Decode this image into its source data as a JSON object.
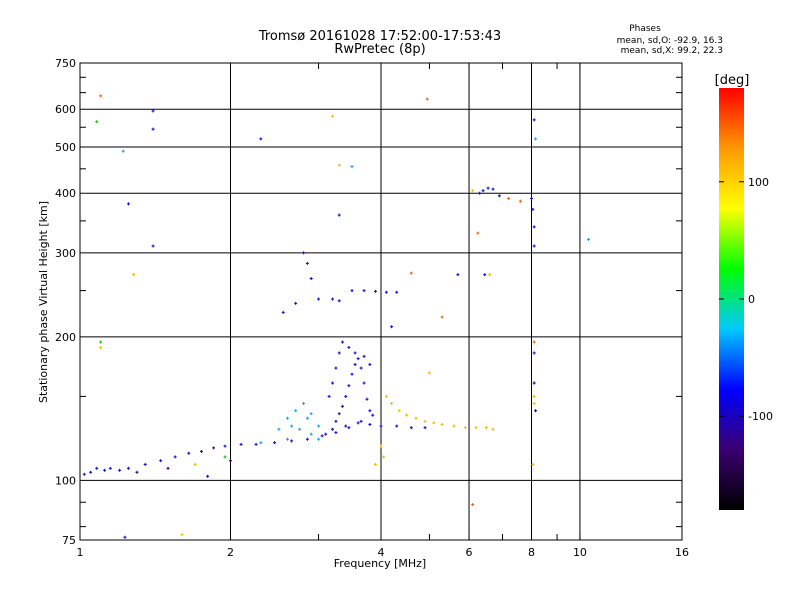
{
  "chart_data": {
    "type": "scatter",
    "title": "Tromsø 20161028 17:52:00-17:53:43",
    "subtitle": "RwPretec (8p)",
    "xlabel": "Frequency [MHz]",
    "ylabel": "Stationary phase Virtual Height [km]",
    "xscale": "log",
    "yscale": "log",
    "xlim": [
      1,
      16
    ],
    "ylim": [
      75,
      750
    ],
    "xticks": [
      1,
      2,
      4,
      6,
      8,
      10,
      16
    ],
    "xtick_labels": [
      "1",
      "2",
      "4",
      "6",
      "8",
      "10",
      "16"
    ],
    "yticks": [
      75,
      100,
      200,
      300,
      400,
      500,
      600,
      750
    ],
    "ytick_labels": [
      "75",
      "100",
      "200",
      "300",
      "400",
      "500",
      "600",
      "750"
    ],
    "grid": true,
    "phase_box": {
      "title": "Phases",
      "line_o": "mean, sd,O: -92.9, 16.3",
      "line_x": "mean, sd,X:  99.2, 22.3"
    },
    "colorbar": {
      "label": "[deg]",
      "range": [
        -180,
        180
      ],
      "ticks": [
        100,
        0,
        -100
      ],
      "tick_labels": [
        "100",
        "0",
        "-100"
      ],
      "colors": [
        "#000000",
        "#3a0070",
        "#0000ff",
        "#00c8ff",
        "#00ff00",
        "#ffff00",
        "#ff9900",
        "#ff0000"
      ]
    },
    "series": [
      {
        "color": "#1414dc",
        "points": [
          [
            1.02,
            103
          ],
          [
            1.05,
            104
          ],
          [
            1.08,
            106
          ],
          [
            1.12,
            105
          ],
          [
            1.15,
            106
          ],
          [
            1.2,
            105
          ],
          [
            1.25,
            106
          ],
          [
            1.35,
            108
          ],
          [
            1.45,
            110
          ],
          [
            1.55,
            112
          ],
          [
            1.65,
            114
          ],
          [
            1.75,
            115
          ],
          [
            1.85,
            117
          ],
          [
            1.95,
            118
          ],
          [
            2.1,
            119
          ],
          [
            2.25,
            119
          ],
          [
            2.45,
            120
          ],
          [
            2.65,
            121
          ],
          [
            2.85,
            122
          ],
          [
            3.05,
            124
          ],
          [
            3.25,
            126
          ],
          [
            3.45,
            129
          ],
          [
            3.65,
            133
          ],
          [
            3.85,
            137
          ],
          [
            3.1,
            125
          ],
          [
            3.2,
            128
          ],
          [
            3.25,
            133
          ],
          [
            3.3,
            138
          ],
          [
            3.35,
            143
          ],
          [
            3.4,
            150
          ],
          [
            3.45,
            158
          ],
          [
            3.5,
            167
          ],
          [
            3.55,
            175
          ],
          [
            3.6,
            180
          ],
          [
            3.65,
            172
          ],
          [
            3.7,
            160
          ],
          [
            3.75,
            148
          ],
          [
            3.8,
            140
          ],
          [
            3.15,
            150
          ],
          [
            3.2,
            160
          ],
          [
            3.25,
            172
          ],
          [
            3.3,
            185
          ],
          [
            3.35,
            195
          ],
          [
            3.45,
            190
          ],
          [
            3.55,
            185
          ],
          [
            3.7,
            182
          ],
          [
            3.8,
            175
          ],
          [
            3.4,
            130
          ],
          [
            3.6,
            132
          ],
          [
            3.8,
            131
          ],
          [
            4.0,
            130
          ],
          [
            4.3,
            130
          ],
          [
            4.6,
            129
          ],
          [
            4.9,
            129
          ],
          [
            3.5,
            250
          ],
          [
            3.7,
            250
          ],
          [
            3.9,
            249
          ],
          [
            4.1,
            248
          ],
          [
            4.3,
            248
          ],
          [
            2.8,
            300
          ],
          [
            2.85,
            285
          ],
          [
            2.9,
            265
          ],
          [
            2.7,
            235
          ],
          [
            3.0,
            240
          ],
          [
            3.2,
            240
          ],
          [
            3.3,
            238
          ],
          [
            2.55,
            225
          ],
          [
            6.4,
            405
          ],
          [
            6.55,
            410
          ],
          [
            6.7,
            408
          ],
          [
            6.9,
            395
          ],
          [
            6.3,
            400
          ],
          [
            8.0,
            390
          ],
          [
            8.05,
            370
          ],
          [
            8.1,
            340
          ],
          [
            8.1,
            310
          ],
          [
            8.1,
            185
          ],
          [
            8.1,
            570
          ],
          [
            1.25,
            380
          ],
          [
            1.4,
            595
          ],
          [
            1.4,
            545
          ],
          [
            1.4,
            310
          ],
          [
            1.23,
            76
          ],
          [
            1.8,
            102
          ],
          [
            2.3,
            520
          ],
          [
            3.3,
            360
          ],
          [
            4.2,
            210
          ],
          [
            6.45,
            270
          ],
          [
            5.7,
            270
          ]
        ]
      },
      {
        "color": "#28a0f0",
        "points": [
          [
            2.6,
            135
          ],
          [
            2.7,
            140
          ],
          [
            2.8,
            145
          ],
          [
            2.9,
            138
          ],
          [
            3.0,
            130
          ],
          [
            2.75,
            128
          ],
          [
            2.9,
            125
          ],
          [
            3.0,
            122
          ],
          [
            2.6,
            122
          ],
          [
            2.5,
            128
          ],
          [
            2.3,
            120
          ],
          [
            1.22,
            490
          ],
          [
            3.5,
            455
          ],
          [
            8.15,
            520
          ],
          [
            10.4,
            320
          ],
          [
            2.65,
            130
          ],
          [
            2.85,
            135
          ]
        ]
      },
      {
        "color": "#f0c000",
        "points": [
          [
            4.1,
            150
          ],
          [
            4.2,
            145
          ],
          [
            4.35,
            140
          ],
          [
            4.5,
            137
          ],
          [
            4.7,
            135
          ],
          [
            4.9,
            133
          ],
          [
            5.1,
            132
          ],
          [
            5.3,
            131
          ],
          [
            5.6,
            130
          ],
          [
            5.9,
            129
          ],
          [
            6.2,
            129
          ],
          [
            6.5,
            129
          ],
          [
            6.7,
            128
          ],
          [
            4.0,
            118
          ],
          [
            4.05,
            112
          ],
          [
            3.9,
            108
          ],
          [
            5.0,
            168
          ],
          [
            3.2,
            580
          ],
          [
            3.3,
            458
          ],
          [
            1.28,
            270
          ],
          [
            6.6,
            270
          ],
          [
            8.1,
            150
          ],
          [
            8.1,
            145
          ],
          [
            8.05,
            108
          ],
          [
            6.1,
            405
          ],
          [
            1.1,
            190
          ],
          [
            1.6,
            77
          ],
          [
            1.7,
            108
          ]
        ]
      },
      {
        "color": "#ff6000",
        "points": [
          [
            1.1,
            640
          ],
          [
            4.95,
            630
          ],
          [
            8.1,
            195
          ],
          [
            6.1,
            89
          ],
          [
            7.2,
            390
          ],
          [
            7.6,
            385
          ],
          [
            6.25,
            330
          ],
          [
            5.3,
            220
          ],
          [
            4.6,
            272
          ]
        ]
      },
      {
        "color": "#18c018",
        "points": [
          [
            1.08,
            565
          ],
          [
            1.1,
            195
          ],
          [
            1.95,
            112
          ]
        ]
      },
      {
        "color": "#3a0070",
        "points": [
          [
            1.3,
            104
          ],
          [
            8.1,
            160
          ],
          [
            8.15,
            140
          ],
          [
            1.5,
            106
          ],
          [
            2.0,
            110
          ]
        ]
      }
    ]
  }
}
